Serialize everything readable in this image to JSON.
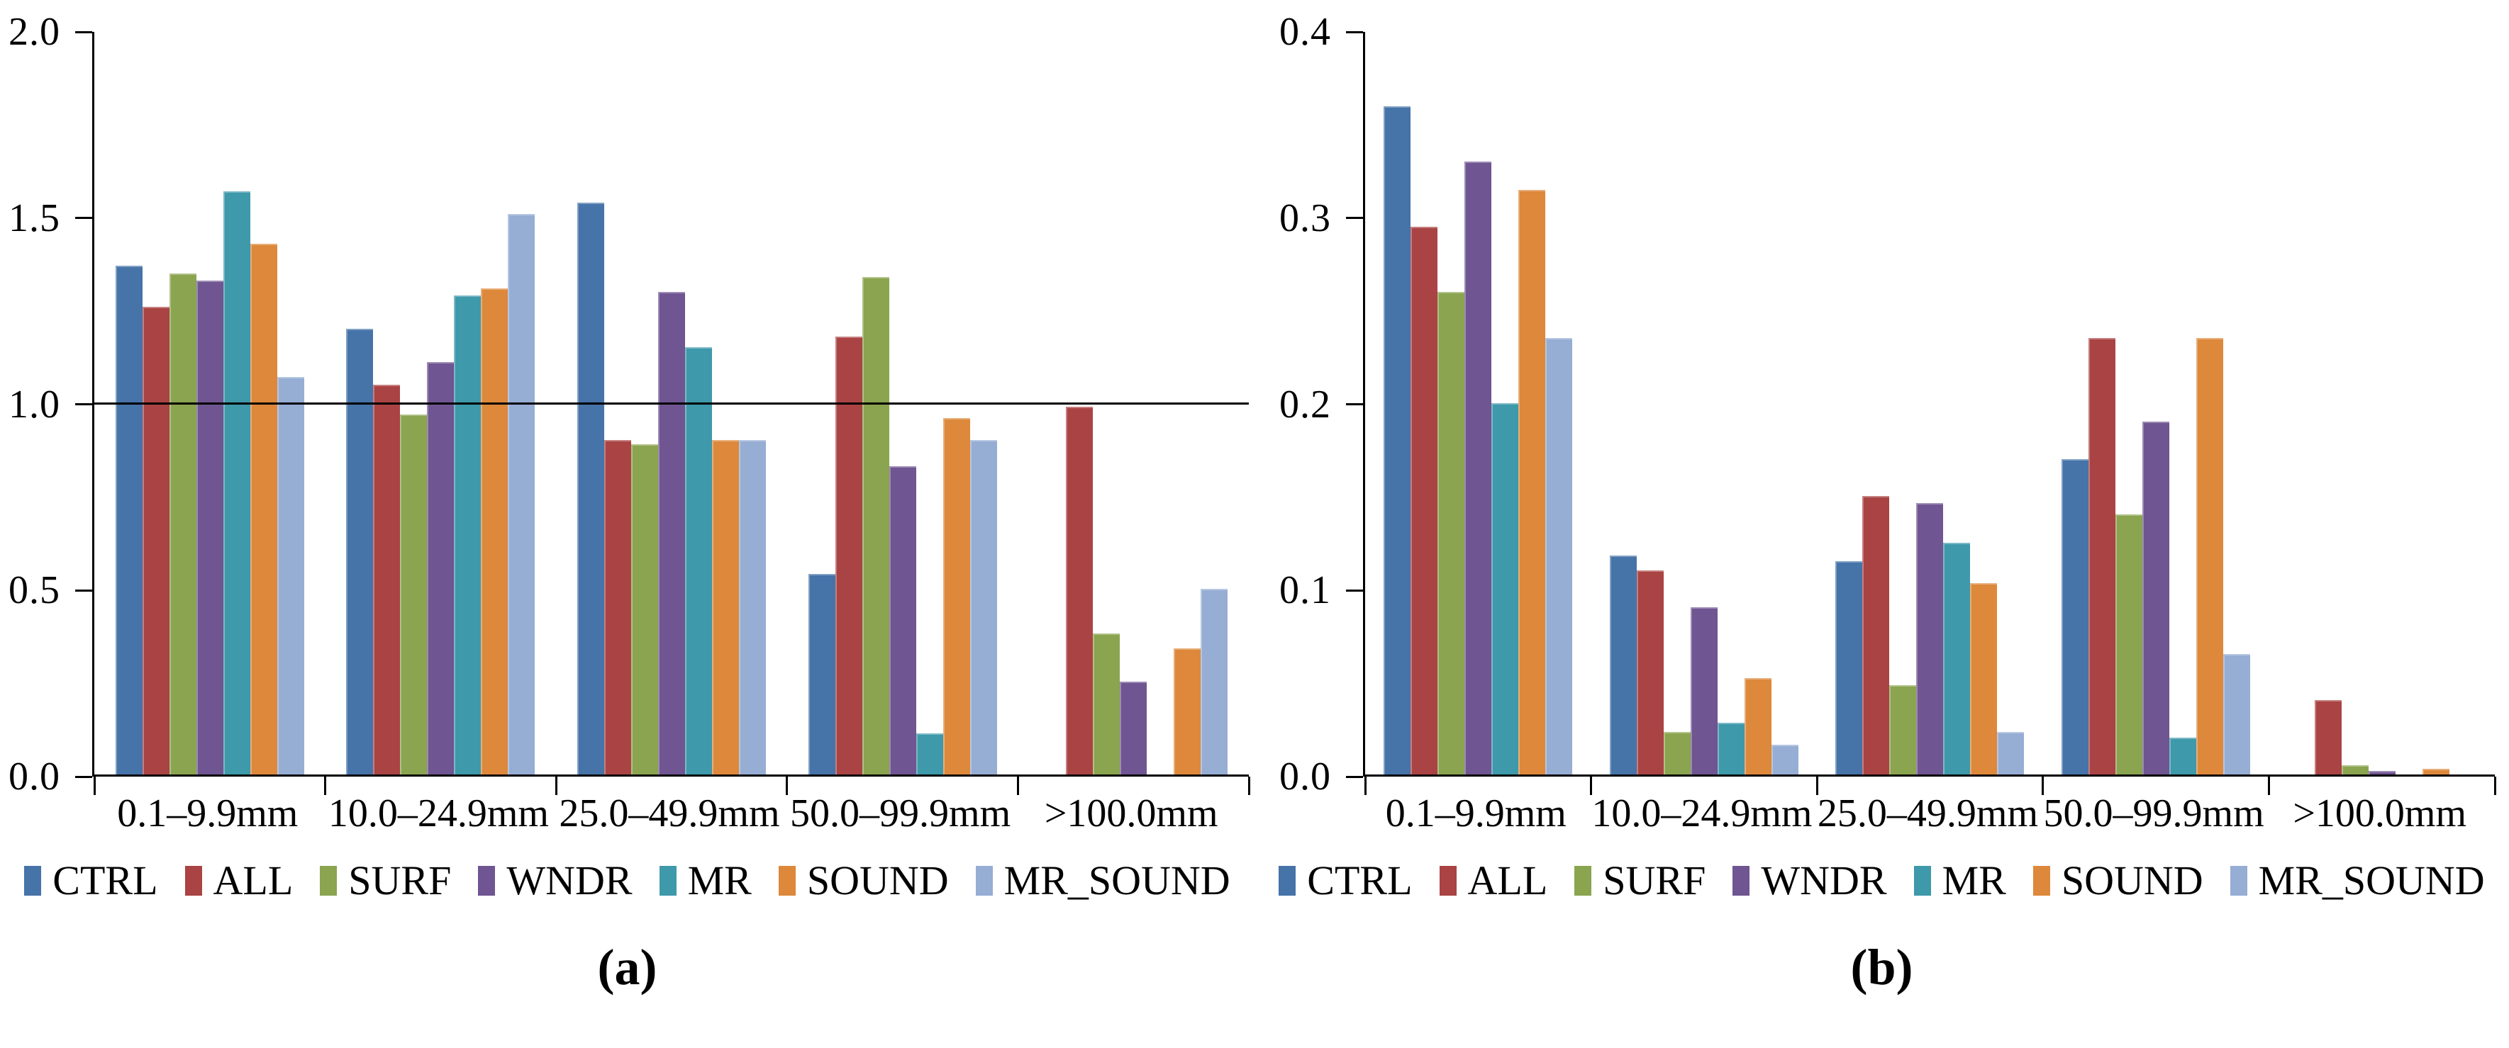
{
  "colors": {
    "background": "#ffffff",
    "axis": "#000000",
    "reference_line": "#000000"
  },
  "chart_data": [
    {
      "type": "bar",
      "caption": "(a)",
      "categories": [
        "0.1–9.9mm",
        "10.0–24.9mm",
        "25.0–49.9mm",
        "50.0–99.9mm",
        ">100.0mm"
      ],
      "series": [
        {
          "name": "CTRL",
          "color": "#4673A8",
          "values": [
            1.37,
            1.2,
            1.54,
            0.54,
            0
          ]
        },
        {
          "name": "ALL",
          "color": "#AA4343",
          "values": [
            1.26,
            1.05,
            0.9,
            1.18,
            0.99
          ]
        },
        {
          "name": "SURF",
          "color": "#8AA44F",
          "values": [
            1.35,
            0.97,
            0.89,
            1.34,
            0.38
          ]
        },
        {
          "name": "WNDR",
          "color": "#6F5591",
          "values": [
            1.33,
            1.11,
            1.3,
            0.83,
            0.25
          ]
        },
        {
          "name": "MR",
          "color": "#3E99AA",
          "values": [
            1.57,
            1.29,
            1.15,
            0.11,
            0
          ]
        },
        {
          "name": "SOUND",
          "color": "#DD883B",
          "values": [
            1.43,
            1.31,
            0.9,
            0.96,
            0.34
          ]
        },
        {
          "name": "MR_SOUND",
          "color": "#96ADD4",
          "values": [
            1.07,
            1.51,
            0.9,
            0.9,
            0.5
          ]
        }
      ],
      "ylim": [
        0,
        2.0
      ],
      "yticks": [
        "0.0",
        "0.5",
        "1.0",
        "1.5",
        "2.0"
      ],
      "reference_line": 1.0,
      "grid": false,
      "legend_position": "bottom"
    },
    {
      "type": "bar",
      "caption": "(b)",
      "categories": [
        "0.1–9.9mm",
        "10.0–24.9mm",
        "25.0–49.9mm",
        "50.0–99.9mm",
        ">100.0mm"
      ],
      "series": [
        {
          "name": "CTRL",
          "color": "#4673A8",
          "values": [
            0.36,
            0.118,
            0.115,
            0.17,
            0
          ]
        },
        {
          "name": "ALL",
          "color": "#AA4343",
          "values": [
            0.295,
            0.11,
            0.15,
            0.235,
            0.04
          ]
        },
        {
          "name": "SURF",
          "color": "#8AA44F",
          "values": [
            0.26,
            0.023,
            0.048,
            0.14,
            0.005
          ]
        },
        {
          "name": "WNDR",
          "color": "#6F5591",
          "values": [
            0.33,
            0.09,
            0.146,
            0.19,
            0.002
          ]
        },
        {
          "name": "MR",
          "color": "#3E99AA",
          "values": [
            0.2,
            0.028,
            0.125,
            0.02,
            0
          ]
        },
        {
          "name": "SOUND",
          "color": "#DD883B",
          "values": [
            0.315,
            0.052,
            0.103,
            0.235,
            0.003
          ]
        },
        {
          "name": "MR_SOUND",
          "color": "#96ADD4",
          "values": [
            0.235,
            0.016,
            0.023,
            0.065,
            0
          ]
        }
      ],
      "ylim": [
        0,
        0.4
      ],
      "yticks": [
        "0.0",
        "0.1",
        "0.2",
        "0.3",
        "0.4"
      ],
      "reference_line": null,
      "grid": false,
      "legend_position": "bottom"
    }
  ]
}
